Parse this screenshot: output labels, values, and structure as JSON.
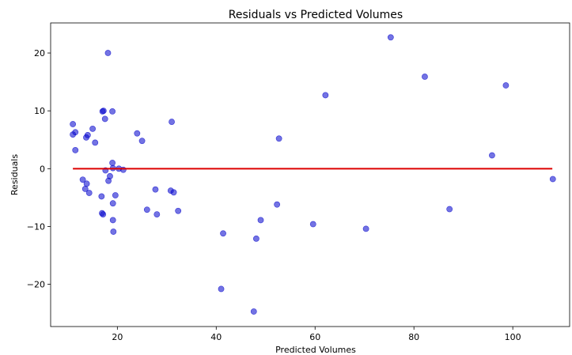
{
  "chart_data": {
    "type": "scatter",
    "title": "Residuals vs Predicted Volumes",
    "xlabel": "Predicted Volumes",
    "ylabel": "Residuals",
    "xlim": [
      6.5,
      111.5
    ],
    "ylim": [
      -27.3,
      25.2
    ],
    "xticks": [
      20,
      40,
      60,
      80,
      100
    ],
    "yticks": [
      -20,
      -10,
      0,
      10,
      20
    ],
    "grid": false,
    "colors": {
      "points": "#0000cc",
      "reference_line": "#dd0000",
      "axes": "#000000"
    },
    "reference_line": {
      "y": 0,
      "x_from": 11,
      "x_to": 108
    },
    "points": [
      [
        11.0,
        7.7
      ],
      [
        11.0,
        5.9
      ],
      [
        11.5,
        6.3
      ],
      [
        11.5,
        3.2
      ],
      [
        13.0,
        -1.9
      ],
      [
        13.5,
        -3.5
      ],
      [
        13.7,
        5.4
      ],
      [
        13.8,
        -2.6
      ],
      [
        14.0,
        5.8
      ],
      [
        14.3,
        -4.2
      ],
      [
        15.0,
        6.9
      ],
      [
        15.5,
        4.5
      ],
      [
        16.8,
        -4.8
      ],
      [
        16.9,
        -7.7
      ],
      [
        17.0,
        9.9
      ],
      [
        17.1,
        -7.9
      ],
      [
        17.2,
        10.0
      ],
      [
        17.5,
        8.6
      ],
      [
        17.6,
        -0.3
      ],
      [
        18.1,
        20.0
      ],
      [
        18.2,
        -2.1
      ],
      [
        18.5,
        -1.3
      ],
      [
        19.0,
        9.9
      ],
      [
        19.0,
        1.0
      ],
      [
        19.1,
        0.1
      ],
      [
        19.1,
        -6.0
      ],
      [
        19.1,
        -8.9
      ],
      [
        19.2,
        -10.9
      ],
      [
        19.6,
        -4.6
      ],
      [
        20.3,
        0.0
      ],
      [
        21.2,
        -0.2
      ],
      [
        24.0,
        6.1
      ],
      [
        25.0,
        4.8
      ],
      [
        26.0,
        -7.1
      ],
      [
        27.7,
        -3.6
      ],
      [
        28.0,
        -7.9
      ],
      [
        30.8,
        -3.8
      ],
      [
        31.0,
        8.1
      ],
      [
        31.4,
        -4.1
      ],
      [
        32.3,
        -7.3
      ],
      [
        41.0,
        -20.8
      ],
      [
        41.4,
        -11.2
      ],
      [
        47.6,
        -24.7
      ],
      [
        48.1,
        -12.1
      ],
      [
        49.0,
        -8.9
      ],
      [
        52.3,
        -6.2
      ],
      [
        52.7,
        5.2
      ],
      [
        59.6,
        -9.6
      ],
      [
        62.1,
        12.7
      ],
      [
        70.3,
        -10.4
      ],
      [
        75.3,
        22.7
      ],
      [
        82.2,
        15.9
      ],
      [
        87.2,
        -7.0
      ],
      [
        95.8,
        2.3
      ],
      [
        98.6,
        14.4
      ],
      [
        108.1,
        -1.8
      ]
    ]
  }
}
